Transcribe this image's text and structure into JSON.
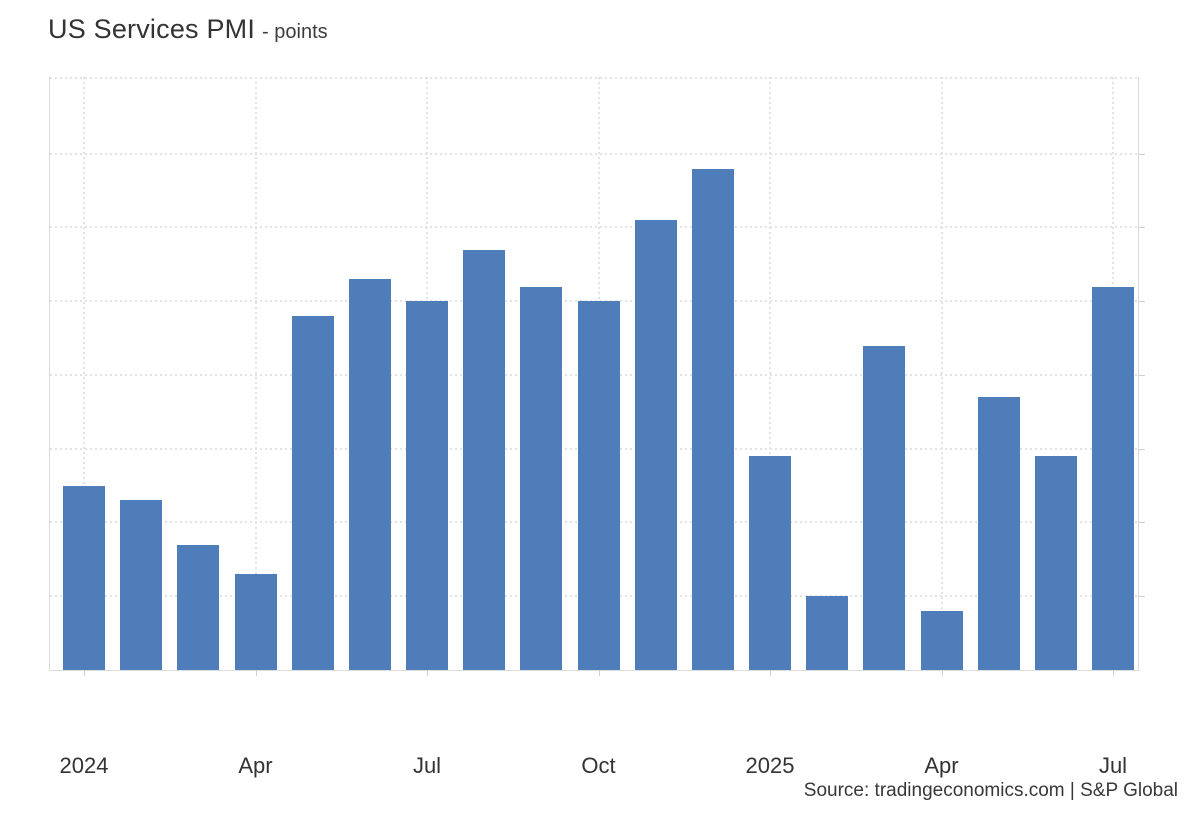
{
  "header": {
    "title": "US Services PMI",
    "subtitle": "- points"
  },
  "footer": {
    "source": "Source: tradingeconomics.com | S&P Global"
  },
  "colors": {
    "bar": "#4e7dba",
    "grid": "#e2e2e2",
    "axis": "#d9d9d9",
    "text": "#333333"
  },
  "chart_data": {
    "type": "bar",
    "title": "US Services PMI",
    "ylabel": "points",
    "x": [
      "Jan 2024",
      "Feb 2024",
      "Mar 2024",
      "Apr 2024",
      "May 2024",
      "Jun 2024",
      "Jul 2024",
      "Aug 2024",
      "Sep 2024",
      "Oct 2024",
      "Nov 2024",
      "Dec 2024",
      "Jan 2025",
      "Feb 2025",
      "Mar 2025",
      "Apr 2025",
      "May 2025",
      "Jun 2025",
      "Jul 2025"
    ],
    "values": [
      52.5,
      52.3,
      51.7,
      51.3,
      54.8,
      55.3,
      55.0,
      55.7,
      55.2,
      55.0,
      56.1,
      56.8,
      52.9,
      51.0,
      54.4,
      50.8,
      53.7,
      52.9,
      55.2
    ],
    "xticks": [
      {
        "label": "2024",
        "index": 0
      },
      {
        "label": "Apr",
        "index": 3
      },
      {
        "label": "Jul",
        "index": 6
      },
      {
        "label": "Oct",
        "index": 9
      },
      {
        "label": "2025",
        "index": 12
      },
      {
        "label": "Apr",
        "index": 15
      },
      {
        "label": "Jul",
        "index": 18
      }
    ],
    "yticks": [
      51,
      52,
      53,
      54,
      55,
      56,
      57
    ],
    "ylim": [
      50,
      58.04
    ],
    "grid": true,
    "legend": false
  }
}
